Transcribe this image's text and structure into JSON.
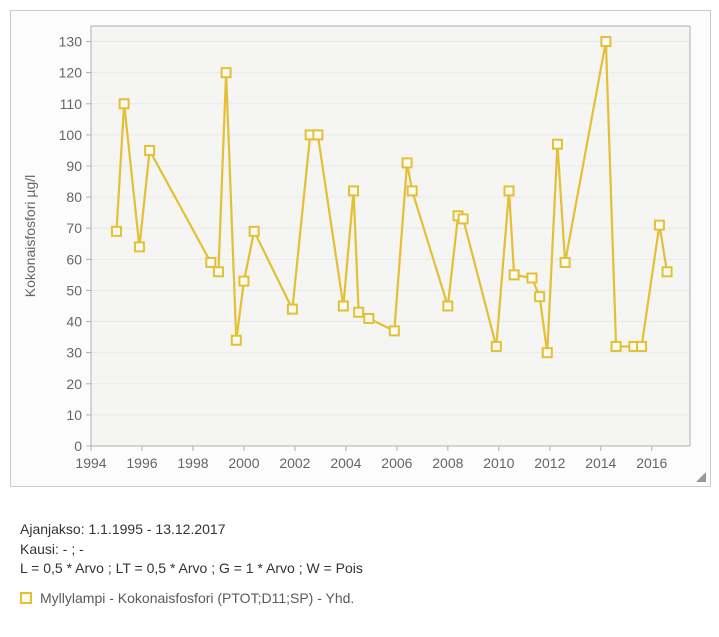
{
  "chart": {
    "type": "line",
    "ylabel": "Kokonaisfosfori µg/l",
    "label_fontsize": 14,
    "tick_fontsize": 14,
    "x_ticks": [
      1994,
      1996,
      1998,
      2000,
      2002,
      2004,
      2006,
      2008,
      2010,
      2012,
      2014,
      2016
    ],
    "y_ticks": [
      0,
      10,
      20,
      30,
      40,
      50,
      60,
      70,
      80,
      90,
      100,
      110,
      120,
      130
    ],
    "xlim": [
      1994,
      2017.5
    ],
    "ylim": [
      0,
      135
    ],
    "background_color": "#fbfbfb",
    "plot_bg_color": "#f5f5f3",
    "grid_color": "#e9e9e9",
    "axis_color": "#b0b0b0",
    "series": {
      "color": "#e3c034",
      "marker_fill": "#fcfbf4",
      "line_width": 2.2,
      "marker_size": 9,
      "points": [
        [
          1995.0,
          69
        ],
        [
          1995.3,
          110
        ],
        [
          1995.9,
          64
        ],
        [
          1996.3,
          95
        ],
        [
          1998.7,
          59
        ],
        [
          1999.0,
          56
        ],
        [
          1999.3,
          120
        ],
        [
          1999.7,
          34
        ],
        [
          2000.0,
          53
        ],
        [
          2000.4,
          69
        ],
        [
          2001.9,
          44
        ],
        [
          2002.6,
          100
        ],
        [
          2002.9,
          100
        ],
        [
          2003.9,
          45
        ],
        [
          2004.3,
          82
        ],
        [
          2004.5,
          43
        ],
        [
          2004.9,
          41
        ],
        [
          2005.9,
          37
        ],
        [
          2006.4,
          91
        ],
        [
          2006.6,
          82
        ],
        [
          2008.0,
          45
        ],
        [
          2008.4,
          74
        ],
        [
          2008.6,
          73
        ],
        [
          2009.9,
          32
        ],
        [
          2010.4,
          82
        ],
        [
          2010.6,
          55
        ],
        [
          2011.3,
          54
        ],
        [
          2011.6,
          48
        ],
        [
          2011.9,
          30
        ],
        [
          2012.3,
          97
        ],
        [
          2012.6,
          59
        ],
        [
          2014.2,
          130
        ],
        [
          2014.6,
          32
        ],
        [
          2015.3,
          32
        ],
        [
          2015.6,
          32
        ],
        [
          2016.3,
          71
        ],
        [
          2016.6,
          56
        ]
      ]
    }
  },
  "caption": {
    "line1": "Ajanjakso: 1.1.1995 - 13.12.2017",
    "line2": "Kausi: - ; -",
    "line3": "L = 0,5 * Arvo ; LT = 0,5 * Arvo ; G = 1 * Arvo ; W = Pois"
  },
  "legend": {
    "label": "Myllylampi - Kokonaisfosfori (PTOT;D11;SP) - Yhd."
  }
}
